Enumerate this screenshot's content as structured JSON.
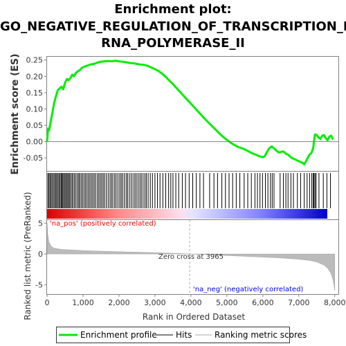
{
  "title_lines": [
    "Enrichment plot:",
    "GO_NEGATIVE_REGULATION_OF_TRANSCRIPTION_BY_",
    "RNA_POLYMERASE_II"
  ],
  "colors": {
    "es_line": "#00ee00",
    "hits": "#000000",
    "metric_fill": "#bbbbbb",
    "pos_color": "#dd0000",
    "neg_color": "#0000dd",
    "zero_line": "#808080",
    "pos_label": "#ff0000",
    "neg_label": "#0000ff"
  },
  "chart_data": [
    {
      "type": "line",
      "title": "Enrichment plot: GO_NEGATIVE_REGULATION_OF_TRANSCRIPTION_BY_RNA_POLYMERASE_II",
      "ylabel": "Enrichment score (ES)",
      "xlim": [
        0,
        8100
      ],
      "ylim": [
        -0.09,
        0.26
      ],
      "yticks": [
        "0.25",
        "0.20",
        "0.15",
        "0.10",
        "0.05",
        "0.00",
        "-0.05"
      ],
      "ytick_values": [
        0.25,
        0.2,
        0.15,
        0.1,
        0.05,
        0.0,
        -0.05
      ],
      "series": [
        {
          "name": "Enrichment profile",
          "x": [
            0,
            30,
            60,
            100,
            150,
            200,
            250,
            300,
            350,
            400,
            450,
            500,
            550,
            600,
            650,
            700,
            750,
            800,
            850,
            900,
            950,
            1000,
            1100,
            1200,
            1300,
            1400,
            1500,
            1600,
            1700,
            1800,
            1900,
            2000,
            2100,
            2200,
            2300,
            2400,
            2500,
            2600,
            2700,
            2800,
            2900,
            3000,
            3100,
            3200,
            3300,
            3400,
            3500,
            3600,
            3700,
            3800,
            3900,
            4000,
            4100,
            4200,
            4300,
            4400,
            4500,
            4600,
            4700,
            4800,
            4900,
            5000,
            5100,
            5200,
            5300,
            5400,
            5500,
            5600,
            5700,
            5800,
            5900,
            6000,
            6050,
            6100,
            6150,
            6200,
            6250,
            6300,
            6350,
            6400,
            6450,
            6500,
            6550,
            6600,
            6650,
            6700,
            6750,
            6800,
            6900,
            7000,
            7100,
            7150,
            7200,
            7250,
            7300,
            7350,
            7400,
            7420,
            7450,
            7500,
            7550,
            7600,
            7650,
            7700,
            7750,
            7800,
            7850,
            7900,
            7950
          ],
          "values": [
            0.0,
            0.04,
            0.035,
            0.06,
            0.09,
            0.12,
            0.14,
            0.158,
            0.163,
            0.168,
            0.16,
            0.18,
            0.192,
            0.188,
            0.195,
            0.205,
            0.2,
            0.21,
            0.215,
            0.218,
            0.224,
            0.228,
            0.232,
            0.236,
            0.238,
            0.242,
            0.245,
            0.246,
            0.247,
            0.246,
            0.248,
            0.246,
            0.245,
            0.243,
            0.241,
            0.24,
            0.238,
            0.236,
            0.235,
            0.232,
            0.227,
            0.222,
            0.216,
            0.208,
            0.198,
            0.187,
            0.176,
            0.164,
            0.152,
            0.14,
            0.128,
            0.116,
            0.104,
            0.092,
            0.08,
            0.068,
            0.057,
            0.046,
            0.035,
            0.024,
            0.014,
            0.005,
            -0.003,
            -0.01,
            -0.016,
            -0.02,
            -0.024,
            -0.03,
            -0.036,
            -0.04,
            -0.045,
            -0.048,
            -0.045,
            -0.035,
            -0.025,
            -0.018,
            -0.015,
            -0.02,
            -0.025,
            -0.03,
            -0.034,
            -0.032,
            -0.03,
            -0.033,
            -0.038,
            -0.04,
            -0.045,
            -0.05,
            -0.055,
            -0.06,
            -0.065,
            -0.07,
            -0.06,
            -0.05,
            -0.04,
            -0.035,
            -0.02,
            0.0,
            0.022,
            0.02,
            0.012,
            0.008,
            0.018,
            0.02,
            0.01,
            0.004,
            0.015,
            0.018,
            0.006
          ]
        }
      ]
    },
    {
      "type": "scatter",
      "title": "Hits",
      "hits_dense_ranks": [
        20,
        50,
        80,
        110,
        140,
        175,
        205,
        240,
        265,
        300,
        330,
        360,
        390,
        415,
        440,
        470,
        500,
        530,
        560,
        590,
        620,
        650,
        690,
        720,
        760,
        800,
        840,
        880,
        910,
        950,
        990,
        1030,
        1070,
        1110,
        1150,
        1190,
        1230,
        1270,
        1310,
        1350,
        1400,
        1440,
        1480,
        1520,
        1560,
        1600,
        1650,
        1700,
        1750,
        1790,
        1830,
        1880,
        1920,
        1970,
        2020,
        2060,
        2100,
        2150,
        2200,
        2240,
        2290,
        2340,
        2390,
        2440,
        2480,
        2530,
        2580,
        2620,
        2670,
        2720,
        2760,
        2810,
        2870,
        2930,
        3000,
        3070,
        3140,
        3220,
        3300,
        3380,
        3440,
        3500,
        3580,
        3660,
        3760,
        3850,
        3950,
        4050,
        4150,
        4250,
        4350
      ],
      "hits_sparse_ranks": [
        4520,
        4640,
        4740,
        4860,
        4960,
        5060,
        5160,
        5260,
        5360,
        5480,
        5580,
        5680,
        5780,
        5850,
        5920,
        5990,
        6070,
        6140,
        6210,
        6260,
        6310,
        6480,
        6570,
        6640,
        6700,
        6780,
        6850,
        6960,
        7050,
        7150,
        7230,
        7300,
        7360,
        7400,
        7420,
        7450,
        7480,
        7560,
        7680,
        7780,
        7880
      ]
    },
    {
      "type": "area",
      "title": "Ranking metric scores",
      "ylabel": "Ranked list metric (PreRanked)",
      "xlabel": "Rank in Ordered Dataset",
      "xlim": [
        0,
        8100
      ],
      "ylim": [
        -6.5,
        5.5
      ],
      "xticks": [
        "0",
        "1,000",
        "2,000",
        "3,000",
        "4,000",
        "5,000",
        "6,000",
        "7,000",
        "8,000"
      ],
      "xtick_values": [
        0,
        1000,
        2000,
        3000,
        4000,
        5000,
        6000,
        7000,
        8000
      ],
      "yticks": [
        "5",
        "0",
        "-5"
      ],
      "ytick_values": [
        5,
        0,
        -5
      ],
      "x": [
        0,
        20,
        50,
        100,
        150,
        200,
        300,
        400,
        600,
        800,
        1000,
        1500,
        2000,
        2500,
        3000,
        3500,
        3965,
        4500,
        5000,
        5500,
        6000,
        6500,
        7000,
        7300,
        7500,
        7700,
        7800,
        7900,
        7950,
        7980,
        8000
      ],
      "values": [
        5.0,
        3.2,
        2.0,
        1.4,
        1.1,
        0.95,
        0.85,
        0.75,
        0.68,
        0.62,
        0.55,
        0.45,
        0.38,
        0.3,
        0.22,
        0.12,
        0.0,
        -0.12,
        -0.25,
        -0.38,
        -0.5,
        -0.65,
        -0.85,
        -1.05,
        -1.3,
        -1.8,
        -2.3,
        -3.2,
        -4.2,
        -5.2,
        -6.0
      ],
      "zero_cross": 3965,
      "annotations": [
        "Zero cross at 3965",
        "'na_pos' (positively correlated)",
        "'na_neg' (negatively correlated)"
      ]
    }
  ],
  "legend": {
    "items": [
      {
        "label": "Enrichment profile",
        "color": "#00ee00",
        "kind": "thick"
      },
      {
        "label": "Hits",
        "color": "#808080",
        "kind": "thin"
      },
      {
        "label": "Ranking metric scores",
        "color": "#d3d3d3",
        "kind": "thin"
      }
    ]
  }
}
